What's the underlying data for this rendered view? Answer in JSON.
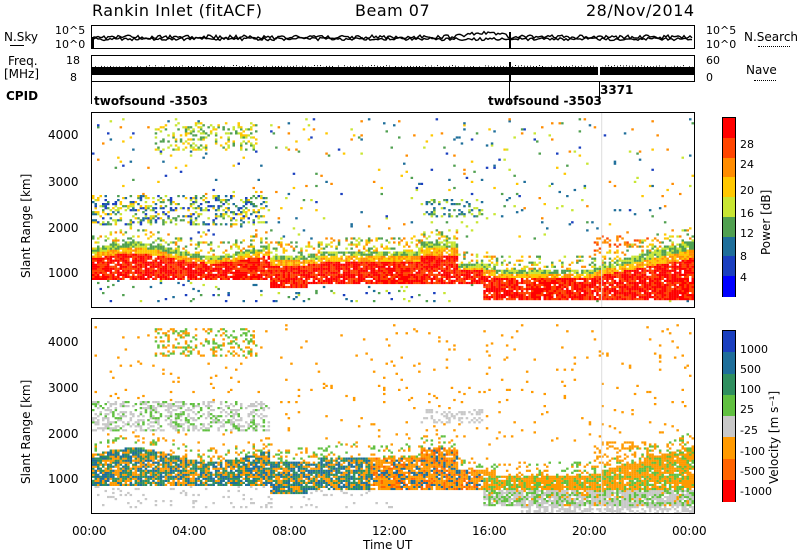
{
  "header": {
    "title": "Rankin Inlet (fitACF)",
    "beam": "Beam 07",
    "date": "28/Nov/2014"
  },
  "top_panels": {
    "nsky_label": "N.Sky",
    "nsky_ticks": [
      "10^5",
      "10^0"
    ],
    "nsearch_label": "N.Search",
    "nsearch_ticks": [
      "10^5",
      "10^0"
    ],
    "freq_label_1": "Freq.",
    "freq_label_2": "[MHz]",
    "freq_ticks": [
      "18",
      "8"
    ],
    "nave_label": "Nave",
    "nave_ticks": [
      "60",
      "0"
    ],
    "cpid_label": "CPID",
    "cpid_segments": [
      "twofsound -3503",
      "twofsound -3503",
      "3371"
    ]
  },
  "power_panel": {
    "ylabel": "Slant Range [km]",
    "yticks": [
      "4000",
      "3000",
      "2000",
      "1000"
    ],
    "colorbar_label": "Power [dB]",
    "colorbar_ticks": [
      "28",
      "24",
      "20",
      "16",
      "12",
      "8",
      "4"
    ],
    "colors": [
      "#ff0000",
      "#ff4500",
      "#ff8c00",
      "#ffc800",
      "#c8e632",
      "#50a050",
      "#1e6e9a",
      "#1a3fbf",
      "#0000ff"
    ]
  },
  "velocity_panel": {
    "ylabel": "Slant Range [km]",
    "yticks": [
      "4000",
      "3000",
      "2000",
      "1000"
    ],
    "colorbar_label": "Velocity [m s⁻¹]",
    "colorbar_ticks": [
      "1000",
      "500",
      "100",
      "25",
      "-25",
      "-100",
      "-500",
      "-1000"
    ],
    "colors": [
      "#1a3fbf",
      "#1e6e9a",
      "#2f8f5f",
      "#60c040",
      "#c8c8c8",
      "#ff9a00",
      "#ff6400",
      "#ff0000"
    ]
  },
  "xaxis": {
    "label": "Time UT",
    "ticks": [
      "00:00",
      "04:00",
      "08:00",
      "12:00",
      "16:00",
      "20:00",
      "00:00"
    ]
  },
  "chart_data": {
    "type": "heatmap",
    "title": "Rankin Inlet (fitACF)",
    "x_range_hours": [
      0,
      24
    ],
    "y_range_km": [
      180,
      4500
    ],
    "series": [
      {
        "name": "Power [dB]",
        "range": [
          0,
          30
        ]
      },
      {
        "name": "Velocity [m s⁻¹]",
        "range": [
          -1000,
          1000
        ]
      }
    ]
  }
}
